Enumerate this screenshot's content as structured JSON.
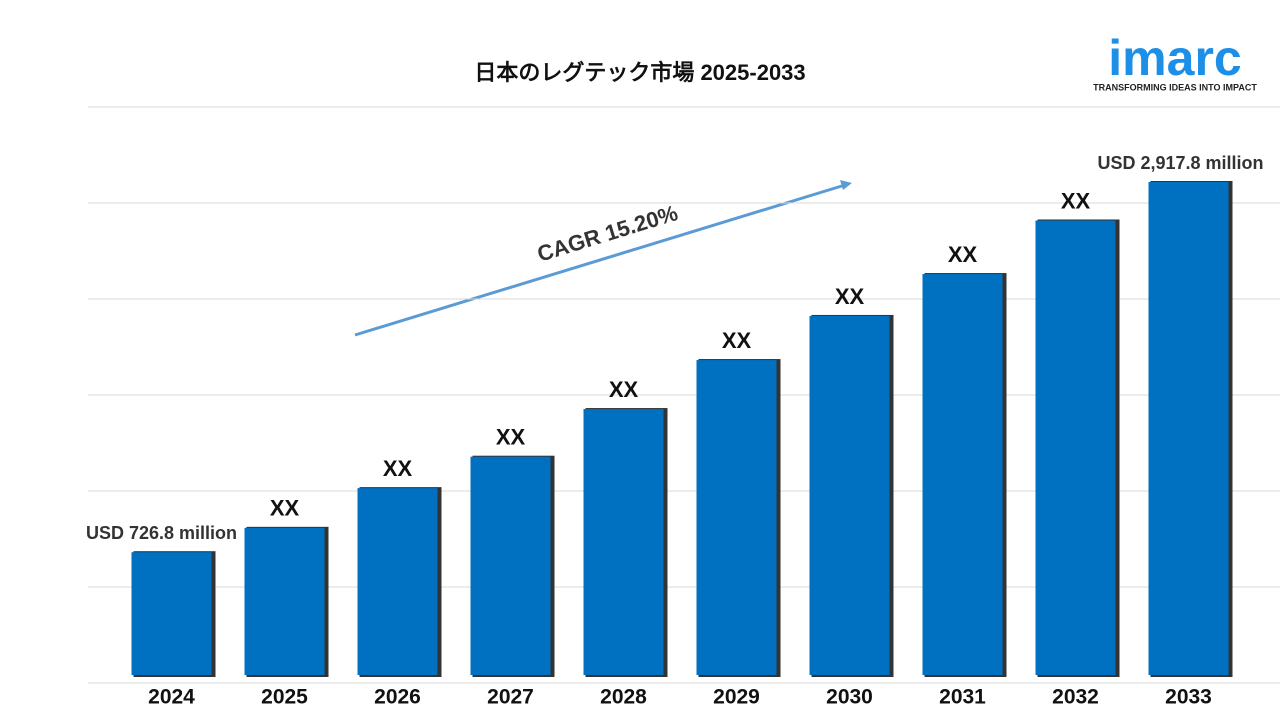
{
  "chart_data": {
    "type": "bar",
    "title": "日本のレグテック市場 2025-2033",
    "categories": [
      "2024",
      "2025",
      "2026",
      "2027",
      "2028",
      "2029",
      "2030",
      "2031",
      "2032",
      "2033"
    ],
    "values": [
      726.8,
      871,
      1106,
      1292,
      1574,
      1864,
      2125,
      2373,
      2690,
      2917.8
    ],
    "value_labels": [
      "USD 726.8 million",
      "XX",
      "XX",
      "XX",
      "XX",
      "XX",
      "XX",
      "XX",
      "XX",
      "USD 2,917.8 million"
    ],
    "color": "#0070c0",
    "grid": true,
    "annotation": "CAGR 15.20%",
    "logo": {
      "name": "imarc",
      "tagline": "TRANSFORMING IDEAS INTO IMPACT"
    }
  }
}
